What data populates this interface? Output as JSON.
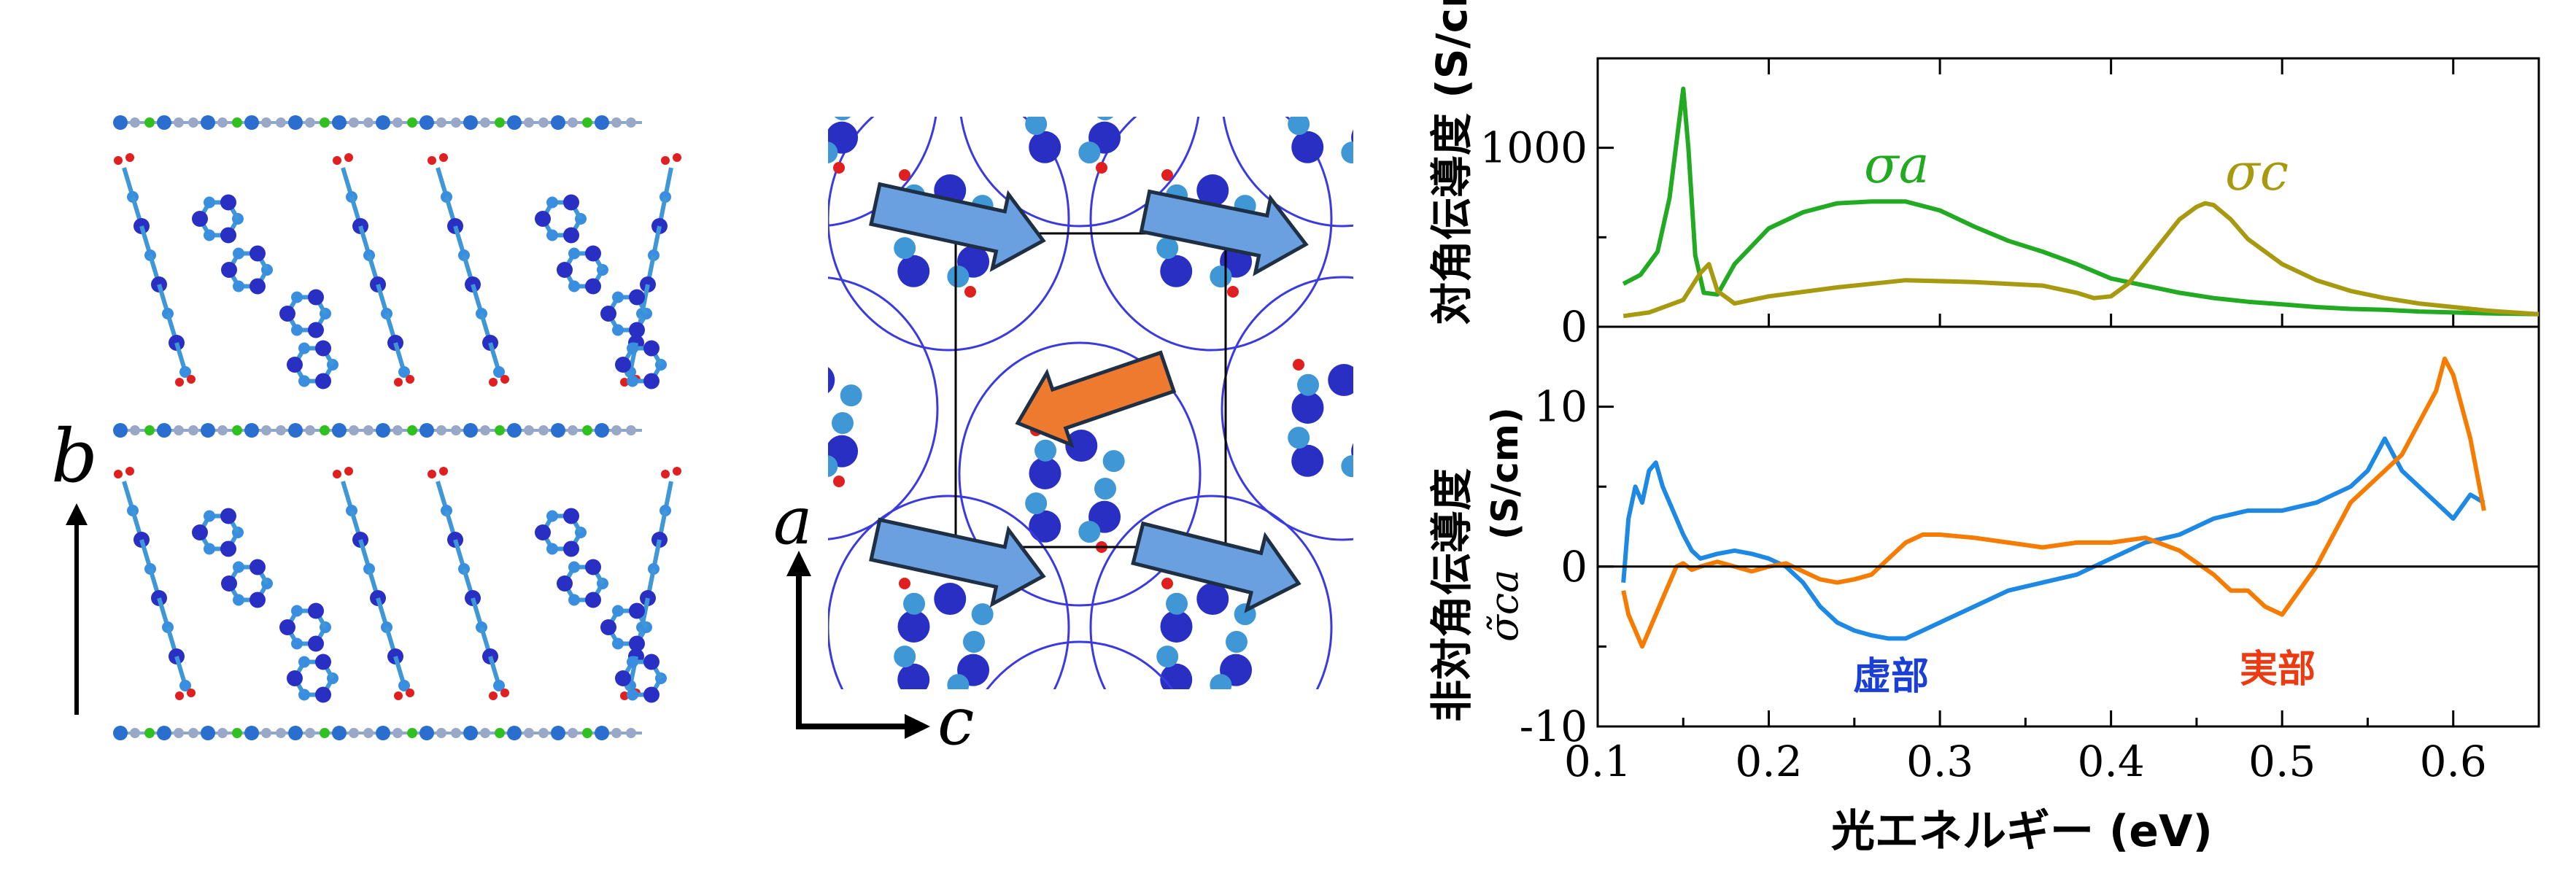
{
  "colors": {
    "atom_blue": "#2a2fc4",
    "atom_dark": "#1a1a8c",
    "bond_lightblue": "#3f97d6",
    "oxygen_red": "#e02020",
    "green_atom": "#30c020",
    "arrow_blue": "#6aa0e0",
    "arrow_orange": "#ee7a30",
    "sigma_a": "#22aa22",
    "sigma_c": "#a89a10",
    "imag": "#1e88e5",
    "real": "#f57c00",
    "imag_label": "#1a3fd6",
    "real_label": "#ee3a10"
  },
  "left_panel": {
    "axis_label": "b"
  },
  "middle_panel": {
    "axis_a_label": "a",
    "axis_c_label": "c"
  },
  "chart_data": [
    {
      "type": "line",
      "ylabel": "対角伝導度 (S/cm)",
      "ylim": [
        0,
        1500
      ],
      "yticks": [
        0,
        1000
      ],
      "xlim": [
        0.1,
        0.65
      ],
      "series": [
        {
          "name": "σa",
          "color": "#22aa22",
          "x": [
            0.115,
            0.125,
            0.135,
            0.142,
            0.147,
            0.15,
            0.153,
            0.157,
            0.162,
            0.17,
            0.18,
            0.2,
            0.22,
            0.24,
            0.26,
            0.28,
            0.3,
            0.32,
            0.34,
            0.36,
            0.38,
            0.4,
            0.42,
            0.44,
            0.46,
            0.48,
            0.5,
            0.52,
            0.54,
            0.56,
            0.58,
            0.6,
            0.62,
            0.65
          ],
          "y": [
            240,
            290,
            420,
            720,
            1100,
            1330,
            1000,
            400,
            190,
            180,
            350,
            550,
            640,
            690,
            700,
            700,
            650,
            560,
            480,
            420,
            350,
            270,
            230,
            190,
            160,
            140,
            125,
            110,
            100,
            95,
            85,
            80,
            75,
            70
          ]
        },
        {
          "name": "σc",
          "color": "#a89a10",
          "x": [
            0.115,
            0.13,
            0.15,
            0.16,
            0.165,
            0.17,
            0.18,
            0.2,
            0.24,
            0.28,
            0.32,
            0.36,
            0.38,
            0.39,
            0.4,
            0.41,
            0.42,
            0.43,
            0.44,
            0.45,
            0.455,
            0.46,
            0.47,
            0.48,
            0.5,
            0.52,
            0.54,
            0.56,
            0.58,
            0.6,
            0.62,
            0.65
          ],
          "y": [
            60,
            80,
            150,
            300,
            350,
            200,
            130,
            170,
            220,
            260,
            250,
            230,
            190,
            160,
            170,
            240,
            360,
            480,
            600,
            670,
            690,
            680,
            600,
            490,
            350,
            260,
            200,
            160,
            130,
            110,
            90,
            70
          ]
        }
      ]
    },
    {
      "type": "line",
      "ylabel": "非対角伝導度",
      "ylabel_symbol": "σ̃ca",
      "ylabel_unit": "(S/cm)",
      "ylim": [
        -10,
        15
      ],
      "yticks": [
        -10,
        0,
        10
      ],
      "xlim": [
        0.1,
        0.65
      ],
      "xticks": [
        0.1,
        0.2,
        0.3,
        0.4,
        0.5,
        0.6
      ],
      "xlabel": "光エネルギー (eV)",
      "series": [
        {
          "name": "虚部",
          "color": "#1e88e5",
          "x": [
            0.115,
            0.118,
            0.122,
            0.126,
            0.13,
            0.134,
            0.138,
            0.142,
            0.146,
            0.15,
            0.155,
            0.16,
            0.17,
            0.18,
            0.19,
            0.2,
            0.21,
            0.22,
            0.23,
            0.24,
            0.25,
            0.26,
            0.27,
            0.28,
            0.29,
            0.3,
            0.32,
            0.34,
            0.36,
            0.38,
            0.4,
            0.42,
            0.44,
            0.46,
            0.48,
            0.5,
            0.52,
            0.53,
            0.54,
            0.55,
            0.555,
            0.56,
            0.57,
            0.58,
            0.59,
            0.6,
            0.61,
            0.618
          ],
          "y": [
            -1,
            3,
            5,
            4,
            6,
            6.5,
            5,
            4,
            3,
            2,
            1,
            0.5,
            0.8,
            1,
            0.8,
            0.5,
            0,
            -1,
            -2.5,
            -3.5,
            -4,
            -4.3,
            -4.5,
            -4.5,
            -4,
            -3.5,
            -2.5,
            -1.5,
            -1,
            -0.5,
            0.5,
            1.5,
            2,
            3,
            3.5,
            3.5,
            4,
            4.5,
            5,
            6,
            7,
            8,
            6,
            5,
            4,
            3,
            4.5,
            4
          ]
        },
        {
          "name": "実部",
          "color": "#f57c00",
          "x": [
            0.115,
            0.118,
            0.122,
            0.126,
            0.13,
            0.134,
            0.138,
            0.142,
            0.146,
            0.15,
            0.155,
            0.16,
            0.17,
            0.18,
            0.19,
            0.2,
            0.21,
            0.22,
            0.23,
            0.24,
            0.25,
            0.26,
            0.27,
            0.28,
            0.29,
            0.3,
            0.32,
            0.34,
            0.36,
            0.38,
            0.4,
            0.42,
            0.44,
            0.46,
            0.47,
            0.48,
            0.49,
            0.5,
            0.51,
            0.52,
            0.53,
            0.54,
            0.55,
            0.56,
            0.57,
            0.58,
            0.59,
            0.595,
            0.6,
            0.605,
            0.61,
            0.618
          ],
          "y": [
            -1.5,
            -3,
            -4,
            -5,
            -4,
            -3,
            -2,
            -1,
            0,
            0.2,
            -0.2,
            0,
            0.3,
            0,
            -0.3,
            0,
            0.2,
            -0.3,
            -0.8,
            -1,
            -0.8,
            -0.5,
            0.5,
            1.5,
            2,
            2,
            1.8,
            1.5,
            1.2,
            1.5,
            1.5,
            1.8,
            1,
            -0.5,
            -1.5,
            -1.5,
            -2.5,
            -3,
            -1.5,
            0,
            2,
            4,
            5,
            6,
            7,
            9,
            11,
            13,
            12,
            10,
            8,
            3.5
          ]
        }
      ]
    }
  ]
}
